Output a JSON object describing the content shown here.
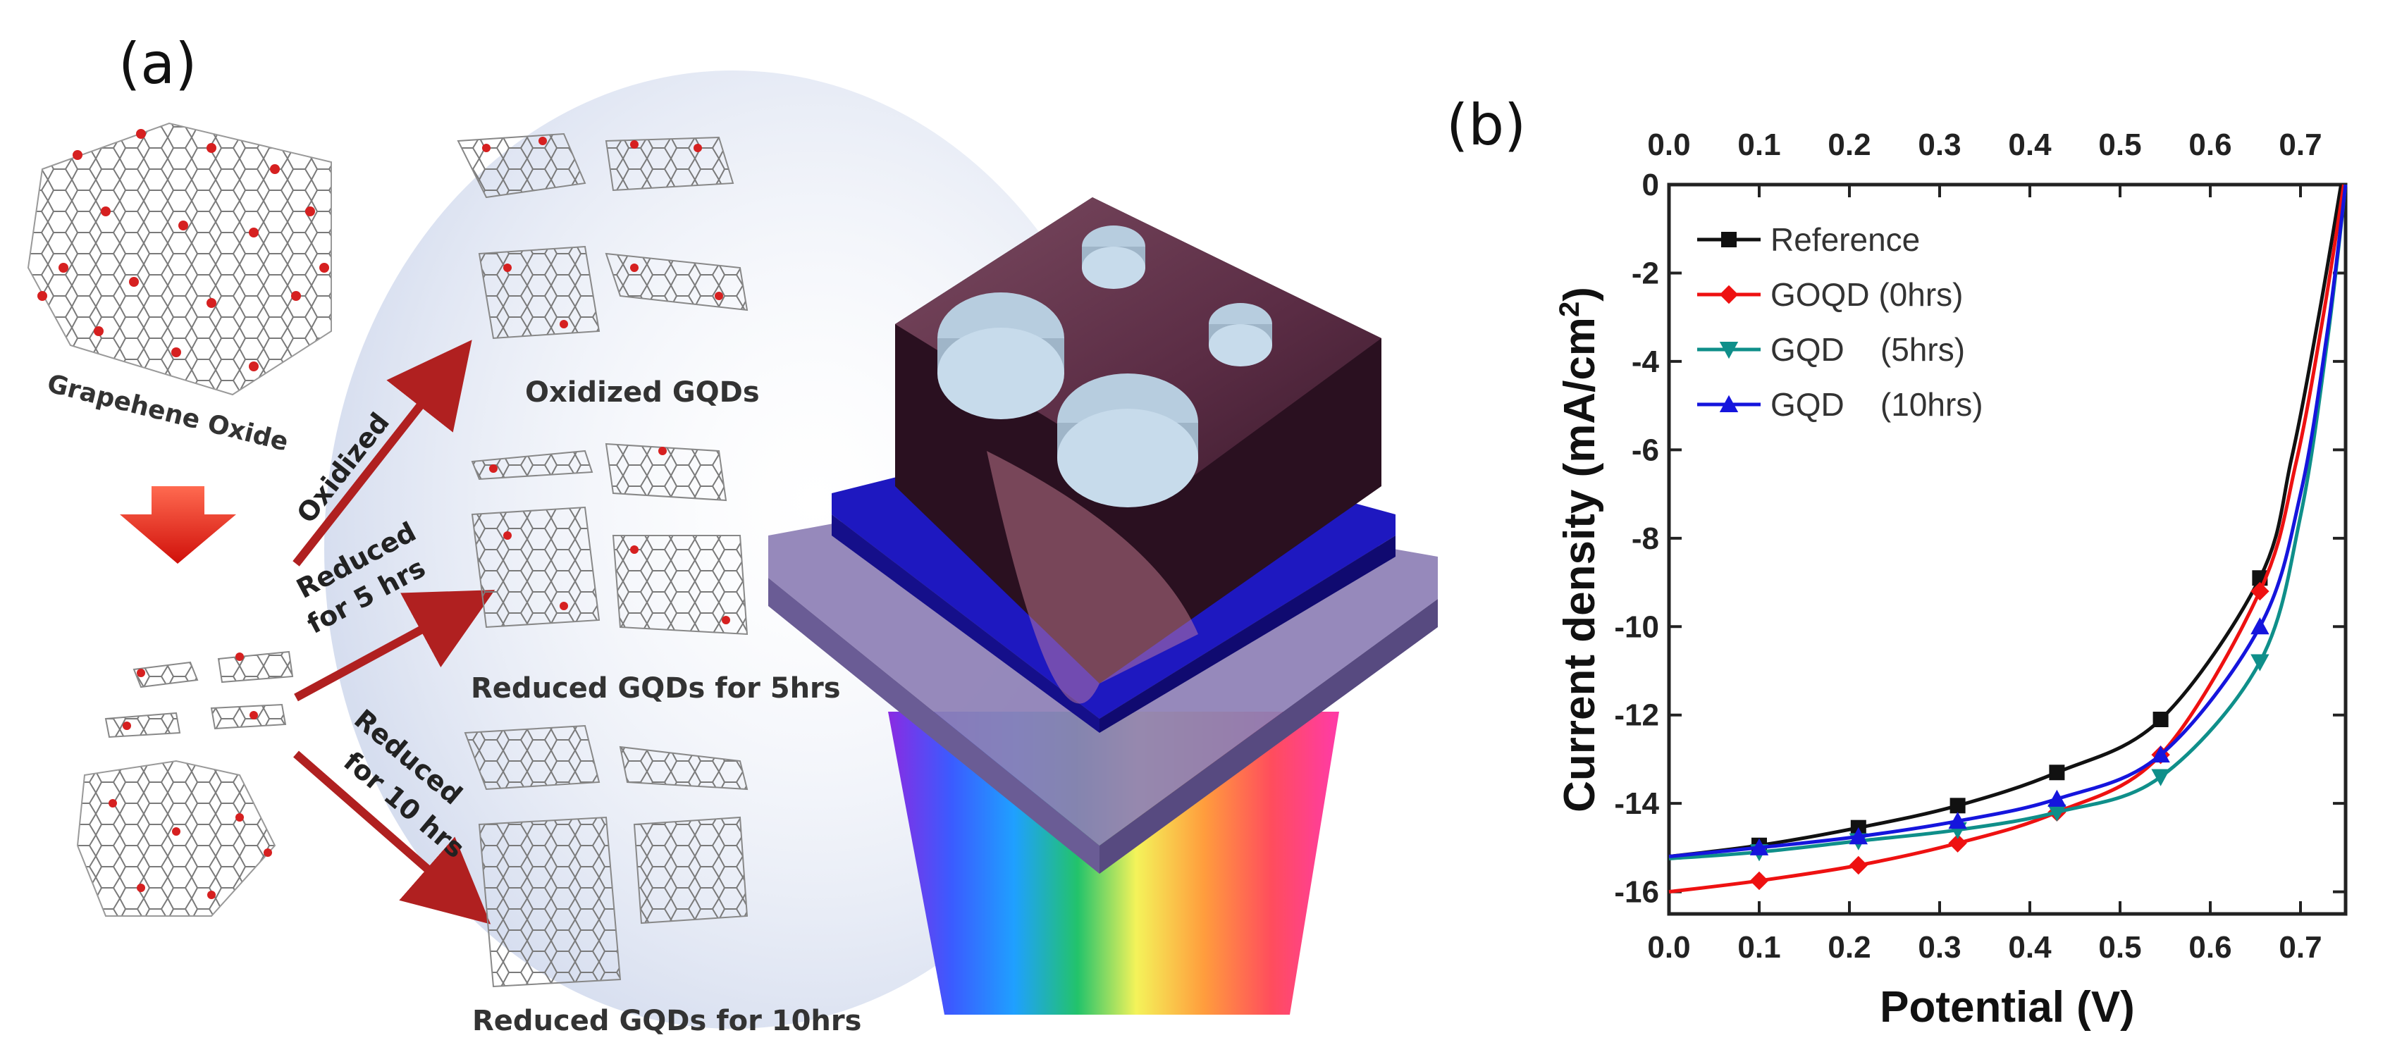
{
  "panel_a": {
    "label": "(a)",
    "graphene_oxide": "Grapehene Oxide",
    "oxidized_gqds": "Oxidized GQDs",
    "reduced_5": "Reduced GQDs for 5hrs",
    "reduced_10": "Reduced GQDs for 10hrs",
    "arrow_oxidized": "Oxidized",
    "arrow_5_line1": "Reduced",
    "arrow_5_line2": "for 5 hrs",
    "arrow_10_line1": "Reduced",
    "arrow_10_line2": "for 10 hrs"
  },
  "colors": {
    "reference": "#111111",
    "goqd": "#ee1111",
    "gqd5": "#0f8f8a",
    "gqd10": "#1515dd",
    "arrow": "#b02020"
  },
  "chart_data": {
    "type": "line",
    "panel_label": "(b)",
    "xlabel": "Potential (V)",
    "ylabel": "Current density (mA/cm",
    "ylabel_sup": "2",
    "ylabel_close": ")",
    "xlim": [
      0.0,
      0.75
    ],
    "ylim": [
      -16.5,
      0
    ],
    "x_ticks": [
      0.0,
      0.1,
      0.2,
      0.3,
      0.4,
      0.5,
      0.6,
      0.7
    ],
    "x_tick_labels": [
      "0.0",
      "0.1",
      "0.2",
      "0.3",
      "0.4",
      "0.5",
      "0.6",
      "0.7"
    ],
    "y_ticks": [
      0,
      -2,
      -4,
      -6,
      -8,
      -10,
      -12,
      -14,
      -16
    ],
    "y_tick_labels": [
      "0",
      "-2",
      "-4",
      "-6",
      "-8",
      "-10",
      "-12",
      "-14",
      "-16"
    ],
    "grid": false,
    "legend_position": "top-left",
    "series": [
      {
        "name": "Reference",
        "marker": "square",
        "color": "#111111",
        "x": [
          0.0,
          0.1,
          0.21,
          0.32,
          0.43,
          0.545,
          0.655,
          0.69,
          0.72,
          0.745
        ],
        "y": [
          -15.2,
          -14.95,
          -14.55,
          -14.05,
          -13.3,
          -12.1,
          -8.9,
          -6.2,
          -3.0,
          0.0
        ],
        "marker_x": [
          0.1,
          0.21,
          0.32,
          0.43,
          0.545,
          0.655
        ],
        "marker_y": [
          -14.95,
          -14.55,
          -14.05,
          -13.3,
          -12.1,
          -8.9
        ]
      },
      {
        "name": "GOQD (0hrs)",
        "marker": "diamond",
        "color": "#ee1111",
        "x": [
          0.0,
          0.1,
          0.21,
          0.32,
          0.43,
          0.545,
          0.655,
          0.695,
          0.725,
          0.748
        ],
        "y": [
          -16.0,
          -15.75,
          -15.4,
          -14.9,
          -14.2,
          -12.9,
          -9.2,
          -6.3,
          -3.0,
          0.0
        ],
        "marker_x": [
          0.1,
          0.21,
          0.32,
          0.43,
          0.545,
          0.655
        ],
        "marker_y": [
          -15.75,
          -15.4,
          -14.9,
          -14.2,
          -12.9,
          -9.2
        ]
      },
      {
        "name": "GQD    (5hrs)",
        "marker": "triangle-down",
        "color": "#0f8f8a",
        "x": [
          0.0,
          0.1,
          0.21,
          0.32,
          0.43,
          0.545,
          0.655,
          0.7,
          0.73,
          0.75
        ],
        "y": [
          -15.25,
          -15.1,
          -14.85,
          -14.6,
          -14.2,
          -13.4,
          -10.8,
          -7.5,
          -3.5,
          0.0
        ],
        "marker_x": [
          0.1,
          0.21,
          0.32,
          0.43,
          0.545,
          0.655
        ],
        "marker_y": [
          -15.1,
          -14.85,
          -14.6,
          -14.2,
          -13.4,
          -10.8
        ]
      },
      {
        "name": "GQD    (10hrs)",
        "marker": "triangle-up",
        "color": "#1515dd",
        "x": [
          0.0,
          0.1,
          0.21,
          0.32,
          0.43,
          0.545,
          0.655,
          0.7,
          0.73,
          0.75
        ],
        "y": [
          -15.2,
          -15.0,
          -14.75,
          -14.4,
          -13.9,
          -12.9,
          -10.0,
          -7.0,
          -3.3,
          0.0
        ],
        "marker_x": [
          0.1,
          0.21,
          0.32,
          0.43,
          0.545,
          0.655
        ],
        "marker_y": [
          -15.0,
          -14.75,
          -14.4,
          -13.9,
          -12.9,
          -10.0
        ]
      }
    ]
  }
}
